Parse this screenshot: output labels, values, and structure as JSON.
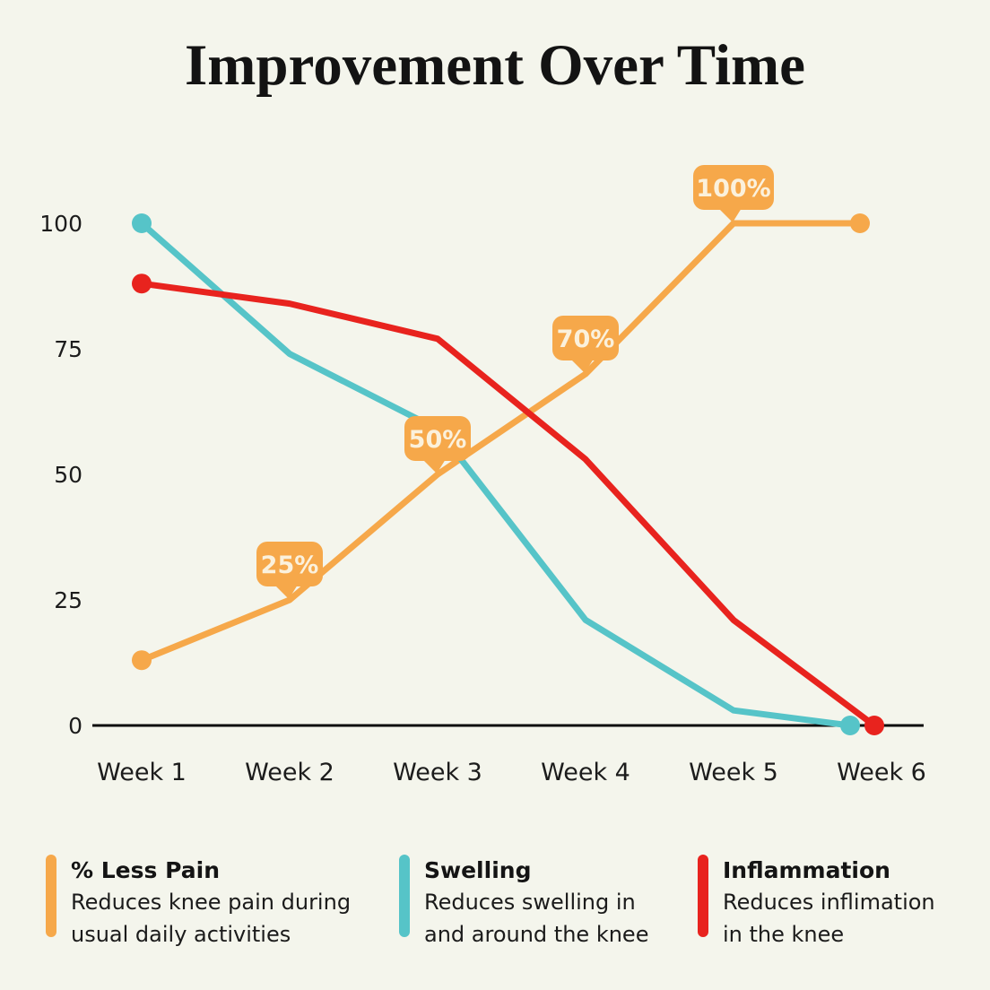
{
  "title": "Improvement Over Time",
  "colors": {
    "background": "#F4F5EC",
    "axis": "#0B0B0B",
    "tick_text": "#1C1C1C",
    "orange": "#F6A84A",
    "teal": "#56C4C8",
    "red": "#E8231E",
    "callout_fill": "#F6A84A",
    "callout_text": "#FBF1DC"
  },
  "chart_data": {
    "type": "line",
    "title": "Improvement Over Time",
    "categories": [
      "Week 1",
      "Week 2",
      "Week 3",
      "Week 4",
      "Week 5",
      "Week 6"
    ],
    "yticks": [
      100,
      75,
      50,
      25,
      0
    ],
    "ylim": [
      0,
      100
    ],
    "grid": false,
    "legend_position": "bottom",
    "series": [
      {
        "name": "% Less Pain",
        "color": "#F6A84A",
        "values": [
          13,
          25,
          50,
          70,
          100,
          100
        ],
        "dot_indices": [
          0,
          5
        ],
        "last_dx": -24
      },
      {
        "name": "Swelling",
        "color": "#56C4C8",
        "values": [
          100,
          74,
          59,
          21,
          3,
          0
        ],
        "dot_indices": [
          0,
          5
        ],
        "last_dx": -35
      },
      {
        "name": "Inflammation",
        "color": "#E8231E",
        "values": [
          88,
          84,
          77,
          53,
          21,
          0
        ],
        "dot_indices": [
          0,
          5
        ],
        "last_dx": -8
      }
    ],
    "callouts": [
      {
        "series": 0,
        "index": 1,
        "label": "25%"
      },
      {
        "series": 0,
        "index": 2,
        "label": "50%"
      },
      {
        "series": 0,
        "index": 3,
        "label": "70%"
      },
      {
        "series": 0,
        "index": 4,
        "label": "100%"
      }
    ]
  },
  "legend": {
    "items": [
      {
        "title": "% Less Pain",
        "color": "#F6A84A",
        "desc_lines": [
          "Reduces knee pain during",
          "usual daily activities"
        ]
      },
      {
        "title": "Swelling",
        "color": "#56C4C8",
        "desc_lines": [
          "Reduces swelling in",
          "and around the knee"
        ]
      },
      {
        "title": "Inflammation",
        "color": "#E8231E",
        "desc_lines": [
          "Reduces inflimation",
          "in the knee"
        ]
      }
    ]
  }
}
